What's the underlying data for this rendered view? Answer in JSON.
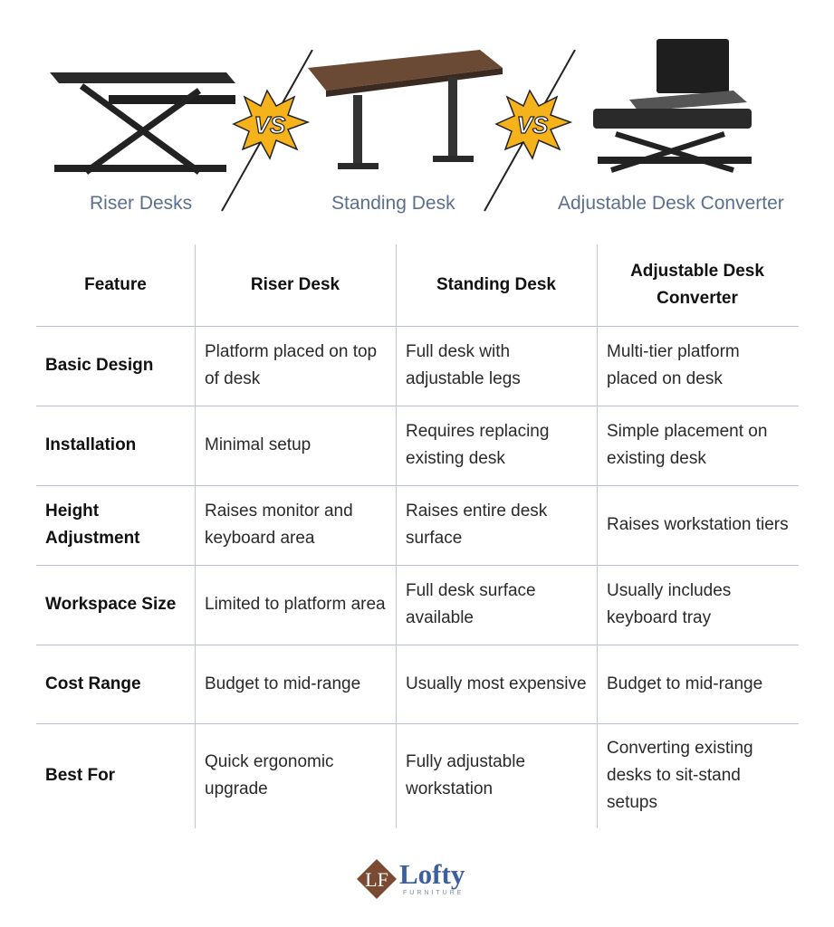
{
  "products": [
    {
      "caption": "Riser Desks",
      "image": "riser-desk"
    },
    {
      "caption": "Standing Desk",
      "image": "standing-desk"
    },
    {
      "caption": "Adjustable Desk Converter",
      "image": "desk-converter"
    }
  ],
  "vs_label": "VS",
  "table": {
    "headers": [
      "Feature",
      "Riser Desk",
      "Standing Desk",
      "Adjustable Desk Converter"
    ],
    "rows": [
      [
        "Basic Design",
        "Platform placed on top of desk",
        "Full desk with adjustable legs",
        "Multi-tier platform placed on desk"
      ],
      [
        "Installation",
        "Minimal setup",
        "Requires replacing existing desk",
        "Simple placement on existing desk"
      ],
      [
        "Height Adjustment",
        "Raises monitor and keyboard area",
        "Raises entire desk surface",
        "Raises workstation tiers"
      ],
      [
        "Workspace Size",
        "Limited to platform area",
        "Full desk surface available",
        "Usually includes keyboard tray"
      ],
      [
        "Cost Range",
        "Budget to mid-range",
        "Usually most expensive",
        "Budget to mid-range"
      ],
      [
        "Best For",
        "Quick ergonomic upgrade",
        "Fully adjustable workstation",
        "Converting existing desks to sit-stand setups"
      ]
    ]
  },
  "logo": {
    "name": "Lofty",
    "sub": "FURNITURE",
    "monogram": "LF"
  },
  "colors": {
    "caption": "#5b6f8f",
    "logo_blue": "#3c5f9e",
    "logo_brown": "#7a4a32",
    "vs_yellow": "#f5b21a"
  }
}
